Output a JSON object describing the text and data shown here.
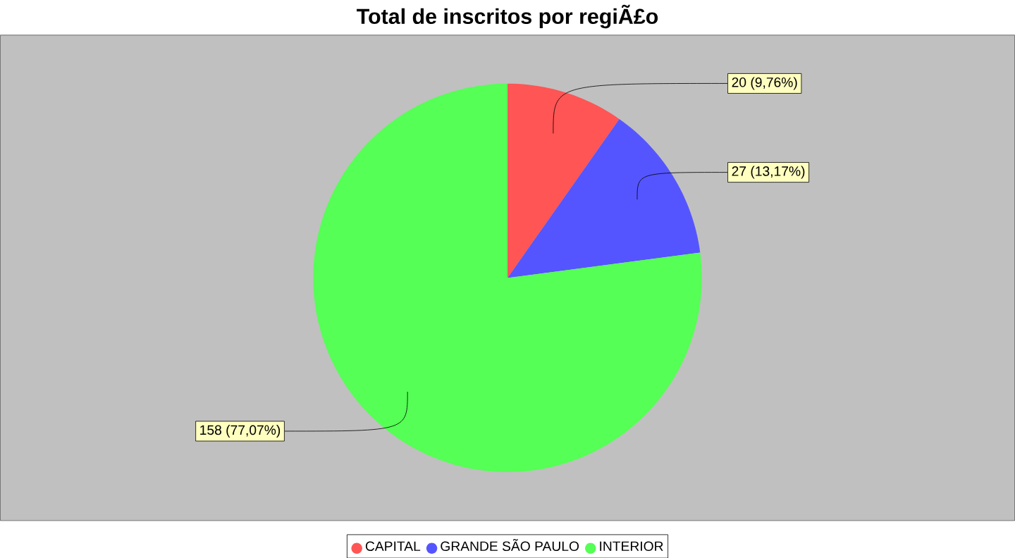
{
  "chart_data": {
    "type": "pie",
    "title": "Total de inscritos por regiÃ£o",
    "categories": [
      "CAPITAL",
      "GRANDE SÃO PAULO",
      "INTERIOR"
    ],
    "values": [
      20,
      27,
      158
    ],
    "colors": [
      "#ff5555",
      "#5555ff",
      "#55ff55"
    ],
    "value_labels": [
      "20 (9,76%)",
      "27 (13,17%)",
      "158 (77,07%)"
    ],
    "legend": "bottom"
  }
}
